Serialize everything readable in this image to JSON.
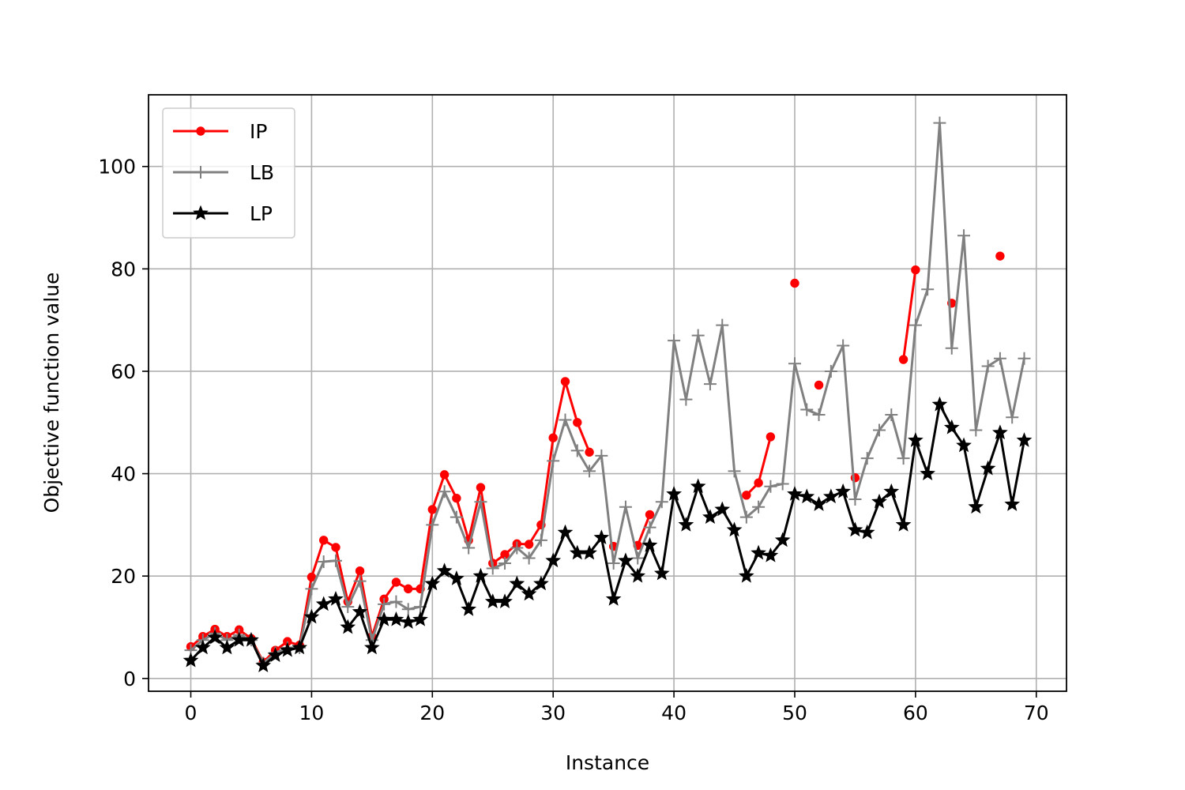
{
  "chart_data": {
    "type": "line",
    "title": "",
    "xlabel": "Instance",
    "ylabel": "Objective function value",
    "xlim": [
      -3.5,
      72.5
    ],
    "ylim": [
      -2.5,
      114
    ],
    "xticks": [
      0,
      10,
      20,
      30,
      40,
      50,
      60,
      70
    ],
    "yticks": [
      0,
      20,
      40,
      60,
      80,
      100
    ],
    "grid": true,
    "legend_position": "upper-left",
    "x": [
      0,
      1,
      2,
      3,
      4,
      5,
      6,
      7,
      8,
      9,
      10,
      11,
      12,
      13,
      14,
      15,
      16,
      17,
      18,
      19,
      20,
      21,
      22,
      23,
      24,
      25,
      26,
      27,
      28,
      29,
      30,
      31,
      32,
      33,
      34,
      35,
      36,
      37,
      38,
      39,
      40,
      41,
      42,
      43,
      44,
      45,
      46,
      47,
      48,
      49,
      50,
      51,
      52,
      53,
      54,
      55,
      56,
      57,
      58,
      59,
      60,
      61,
      62,
      63,
      64,
      65,
      66,
      67,
      68,
      69
    ],
    "series": [
      {
        "name": "IP",
        "color": "#ff0000",
        "marker": "dot",
        "values": [
          6.2,
          8.2,
          9.6,
          8.2,
          9.5,
          7.8,
          3.2,
          5.5,
          7.2,
          6.5,
          19.8,
          27,
          25.6,
          15,
          21,
          8.2,
          15.5,
          18.8,
          17.5,
          17.5,
          33,
          39.8,
          35.2,
          27,
          37.3,
          22.5,
          24.2,
          26.3,
          26.2,
          30,
          47,
          58,
          50,
          44.2,
          null,
          25.8,
          null,
          26,
          32,
          null,
          null,
          null,
          null,
          null,
          null,
          null,
          35.8,
          38.2,
          47.2,
          null,
          77.2,
          null,
          57.3,
          null,
          null,
          39.2,
          null,
          null,
          null,
          62.3,
          79.8,
          null,
          null,
          73.3,
          null,
          null,
          null,
          82.5,
          null,
          null
        ]
      },
      {
        "name": "LB",
        "color": "#808080",
        "marker": "plus",
        "values": [
          5.5,
          7.5,
          8.8,
          7.5,
          8.5,
          7.5,
          3,
          5,
          6,
          6,
          17.5,
          22.8,
          23,
          14,
          19,
          7.5,
          14.5,
          15,
          13.5,
          14,
          30,
          36.5,
          31.5,
          25.5,
          34.5,
          21.5,
          22.5,
          25.5,
          23.5,
          27,
          42.5,
          50.5,
          44.5,
          40.5,
          43.5,
          22.5,
          33.5,
          23.5,
          29.5,
          34.5,
          66,
          54.5,
          67,
          57.5,
          69,
          40.5,
          31.5,
          33.5,
          37.5,
          38,
          61.5,
          52.5,
          51.5,
          60,
          65,
          35,
          43,
          48.5,
          51.5,
          43,
          69,
          76,
          108.5,
          64.5,
          86.5,
          48.5,
          61,
          62.5,
          51,
          62.5
        ]
      },
      {
        "name": "LP",
        "color": "#000000",
        "marker": "star",
        "values": [
          3.5,
          6,
          8,
          6,
          7.5,
          7.5,
          2.5,
          4.5,
          5.5,
          6,
          12,
          14.5,
          15.5,
          10,
          13,
          6,
          11.5,
          11.5,
          11,
          11.5,
          18.5,
          21,
          19.5,
          13.5,
          20,
          15,
          15,
          18.5,
          16.5,
          18.5,
          23,
          28.5,
          24.5,
          24.5,
          27.5,
          15.5,
          23,
          20,
          26,
          20.5,
          36,
          30,
          37.5,
          31.5,
          33,
          29,
          20,
          24.5,
          24,
          27,
          36,
          35.5,
          34,
          35.5,
          36.5,
          29,
          28.5,
          34.5,
          36.5,
          30,
          46.5,
          40,
          53.5,
          49,
          45.5,
          33.5,
          41,
          48,
          34,
          46.5
        ]
      }
    ]
  }
}
